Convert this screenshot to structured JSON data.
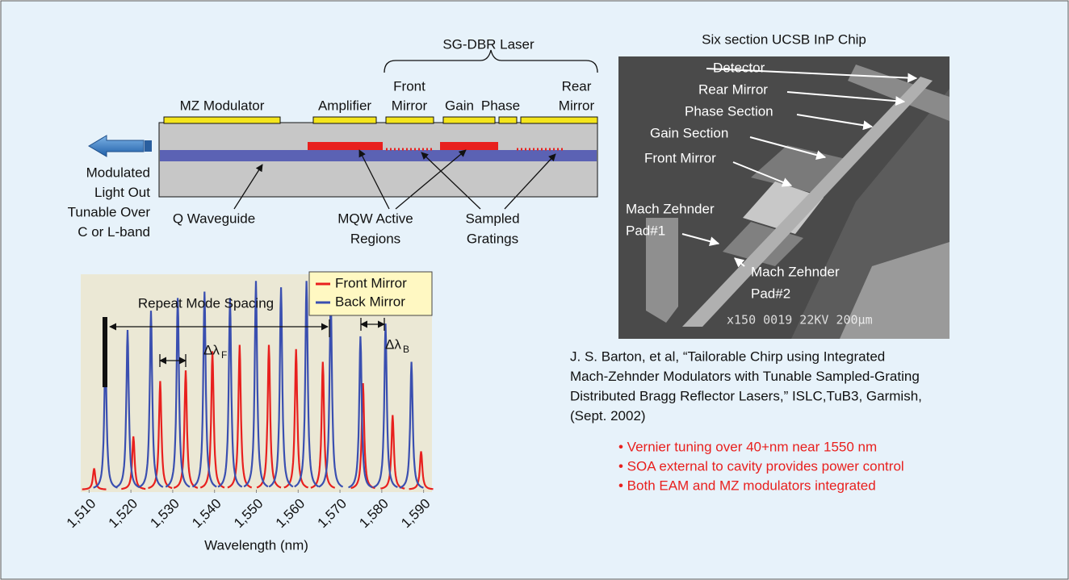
{
  "diagram": {
    "laser_title": "SG-DBR Laser",
    "sections": [
      {
        "label": [
          "MZ Modulator"
        ]
      },
      {
        "label": [
          "Amplifier"
        ]
      },
      {
        "label": [
          "Front",
          "Mirror"
        ]
      },
      {
        "label": [
          "Gain"
        ]
      },
      {
        "label": [
          "Phase"
        ]
      },
      {
        "label": [
          "Rear",
          "Mirror"
        ]
      }
    ],
    "output": [
      "Modulated",
      "Light Out",
      "Tunable Over",
      "C or L-band"
    ],
    "waveguide": [
      "Q Waveguide"
    ],
    "active": [
      "MQW Active",
      "Regions"
    ],
    "gratings": [
      "Sampled",
      "Gratings"
    ]
  },
  "chart_data": {
    "type": "spectrum",
    "x_label": "Wavelength (nm)",
    "xlim": [
      1508,
      1592
    ],
    "ylim": [
      0,
      1
    ],
    "xticks": [
      {
        "value": 1510,
        "label": "1,510"
      },
      {
        "value": 1520,
        "label": "1,520"
      },
      {
        "value": 1530,
        "label": "1,530"
      },
      {
        "value": 1540,
        "label": "1,540"
      },
      {
        "value": 1550,
        "label": "1,550"
      },
      {
        "value": 1560,
        "label": "1,560"
      },
      {
        "value": 1570,
        "label": "1,570"
      },
      {
        "value": 1580,
        "label": "1,580"
      },
      {
        "value": 1590,
        "label": "1,590"
      }
    ],
    "legend": "top-right",
    "series": [
      {
        "name": "Front Mirror",
        "color": "#e8201e",
        "x": [
          1511.2,
          1520.6,
          1527.0,
          1533.1,
          1539.5,
          1546.0,
          1553.0,
          1559.5,
          1565.9,
          1575.5,
          1582.6,
          1589.4
        ],
        "values": [
          0.1,
          0.25,
          0.51,
          0.56,
          0.65,
          0.68,
          0.68,
          0.66,
          0.6,
          0.5,
          0.35,
          0.18
        ]
      },
      {
        "name": "Back Mirror",
        "color": "#3a4fb0",
        "x": [
          1513.9,
          1519.2,
          1524.8,
          1531.2,
          1537.6,
          1543.7,
          1549.9,
          1555.9,
          1562.0,
          1567.8,
          1574.9,
          1580.9,
          1587.1
        ],
        "values": [
          0.63,
          0.75,
          0.84,
          0.9,
          0.93,
          0.9,
          0.98,
          0.95,
          0.98,
          0.9,
          0.72,
          0.78,
          0.6
        ]
      }
    ],
    "annotations": {
      "repeat": "Repeat Mode Spacing",
      "delta_front": {
        "symbol": "Δλ",
        "subscript": "F"
      },
      "delta_back": {
        "symbol": "Δλ",
        "subscript": "B"
      }
    }
  },
  "photo": {
    "title": "Six section UCSB InP Chip",
    "labels": [
      [
        "Detector"
      ],
      [
        "Rear Mirror"
      ],
      [
        "Phase Section"
      ],
      [
        "Gain Section"
      ],
      [
        "Front Mirror"
      ],
      [
        "Mach Zehnder",
        "Pad#1"
      ],
      [
        "Mach Zehnder",
        "Pad#2"
      ]
    ],
    "scale_text": "x150  0019  22KV  200μm"
  },
  "citation": [
    "J. S. Barton, et al, “Tailorable Chirp using Integrated",
    "Mach-Zehnder Modulators with Tunable Sampled-Grating",
    "Distributed Bragg Reflector Lasers,” ISLC,TuB3, Garmish,",
    "(Sept. 2002)"
  ],
  "bullets": [
    "• Vernier tuning over 40+nm near 1550 nm",
    "• SOA external to cavity provides power control",
    "• Both EAM and MZ modulators integrated"
  ]
}
